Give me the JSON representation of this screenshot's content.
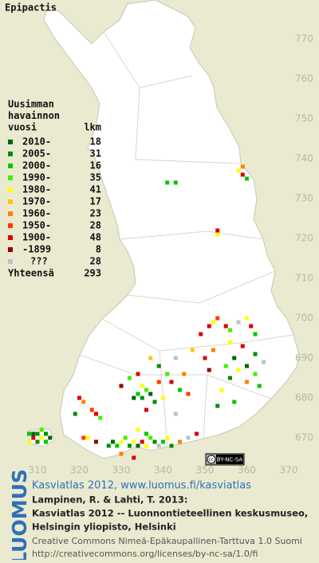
{
  "map": {
    "title": "Epipactis",
    "legend": {
      "heading": [
        "Uusimman",
        "havainnon",
        "vuosi"
      ],
      "count_header": "lkm",
      "rows": [
        {
          "label": "2010-",
          "count": 18,
          "color": "#006400"
        },
        {
          "label": "2005-",
          "count": 31,
          "color": "#008c00"
        },
        {
          "label": "2000-",
          "count": 16,
          "color": "#00c800"
        },
        {
          "label": "1990-",
          "count": 35,
          "color": "#44ee00"
        },
        {
          "label": "1980-",
          "count": 41,
          "color": "#ffff00"
        },
        {
          "label": "1970-",
          "count": 17,
          "color": "#ffc800"
        },
        {
          "label": "1960-",
          "count": 23,
          "color": "#ff8000"
        },
        {
          "label": "1950-",
          "count": 28,
          "color": "#ff3c00"
        },
        {
          "label": "1900-",
          "count": 48,
          "color": "#dc0000"
        },
        {
          "label": "-1899",
          "count": 8,
          "color": "#960000"
        },
        {
          "label": "???",
          "count": 28,
          "color": "#c0c0c0"
        }
      ],
      "total_label": "Yhteensä",
      "total": 293
    },
    "xticks": [
      310,
      320,
      330,
      340,
      350,
      360,
      370
    ],
    "yticks": [
      770,
      760,
      750,
      740,
      730,
      720,
      710,
      700,
      690,
      680,
      670
    ],
    "points": [
      [
        341,
        734,
        2
      ],
      [
        343,
        734,
        2
      ],
      [
        358,
        737,
        4
      ],
      [
        359,
        736,
        8
      ],
      [
        360,
        735,
        2
      ],
      [
        359,
        738,
        6
      ],
      [
        353,
        722,
        8
      ],
      [
        353,
        721,
        4
      ],
      [
        308,
        671,
        2
      ],
      [
        309,
        671,
        0
      ],
      [
        310,
        671,
        1
      ],
      [
        311,
        670,
        4
      ],
      [
        312,
        671,
        1
      ],
      [
        309,
        670,
        8
      ],
      [
        310,
        669,
        1
      ],
      [
        312,
        669,
        2
      ],
      [
        313,
        670,
        0
      ],
      [
        311,
        672,
        3
      ],
      [
        308,
        669,
        4
      ],
      [
        320,
        680,
        8
      ],
      [
        321,
        679,
        6
      ],
      [
        323,
        677,
        7
      ],
      [
        324,
        676,
        8
      ],
      [
        325,
        675,
        3
      ],
      [
        319,
        676,
        1
      ],
      [
        321,
        670,
        7
      ],
      [
        322,
        670,
        4
      ],
      [
        324,
        669,
        9
      ],
      [
        327,
        668,
        1
      ],
      [
        328,
        669,
        0
      ],
      [
        329,
        668,
        2
      ],
      [
        330,
        669,
        4
      ],
      [
        331,
        670,
        3
      ],
      [
        332,
        668,
        1
      ],
      [
        333,
        669,
        4
      ],
      [
        334,
        668,
        0
      ],
      [
        335,
        669,
        8
      ],
      [
        336,
        668,
        4
      ],
      [
        337,
        670,
        3
      ],
      [
        338,
        669,
        1
      ],
      [
        339,
        668,
        10
      ],
      [
        340,
        669,
        2
      ],
      [
        341,
        670,
        4
      ],
      [
        330,
        666,
        6
      ],
      [
        333,
        665,
        8
      ],
      [
        334,
        672,
        4
      ],
      [
        336,
        671,
        2
      ],
      [
        342,
        668,
        1
      ],
      [
        344,
        669,
        6
      ],
      [
        346,
        670,
        10
      ],
      [
        348,
        671,
        8
      ],
      [
        333,
        680,
        0
      ],
      [
        334,
        681,
        2
      ],
      [
        335,
        680,
        1
      ],
      [
        336,
        682,
        3
      ],
      [
        337,
        681,
        0
      ],
      [
        335,
        683,
        4
      ],
      [
        338,
        679,
        1
      ],
      [
        336,
        677,
        8
      ],
      [
        340,
        680,
        4
      ],
      [
        339,
        684,
        7
      ],
      [
        342,
        684,
        8
      ],
      [
        341,
        686,
        3
      ],
      [
        344,
        682,
        2
      ],
      [
        345,
        686,
        6
      ],
      [
        343,
        676,
        10
      ],
      [
        346,
        681,
        7
      ],
      [
        330,
        683,
        9
      ],
      [
        332,
        685,
        3
      ],
      [
        339,
        688,
        1
      ],
      [
        343,
        690,
        10
      ],
      [
        337,
        690,
        5
      ],
      [
        334,
        686,
        8
      ],
      [
        351,
        698,
        8
      ],
      [
        352,
        699,
        4
      ],
      [
        353,
        700,
        7
      ],
      [
        355,
        698,
        8
      ],
      [
        356,
        697,
        3
      ],
      [
        358,
        699,
        10
      ],
      [
        360,
        700,
        4
      ],
      [
        361,
        698,
        8
      ],
      [
        362,
        696,
        2
      ],
      [
        359,
        693,
        8
      ],
      [
        362,
        691,
        1
      ],
      [
        357,
        690,
        0
      ],
      [
        355,
        688,
        3
      ],
      [
        358,
        687,
        4
      ],
      [
        356,
        685,
        1
      ],
      [
        360,
        684,
        6
      ],
      [
        362,
        686,
        3
      ],
      [
        364,
        689,
        10
      ],
      [
        363,
        683,
        2
      ],
      [
        352,
        692,
        6
      ],
      [
        350,
        690,
        8
      ],
      [
        354,
        682,
        4
      ],
      [
        353,
        678,
        1
      ],
      [
        357,
        679,
        2
      ],
      [
        351,
        687,
        9
      ],
      [
        349,
        696,
        8
      ],
      [
        347,
        692,
        5
      ],
      [
        356,
        694,
        4
      ],
      [
        360,
        688,
        0
      ]
    ]
  },
  "credits": {
    "logo": "LUOMUS",
    "link": "Kasviatlas 2012, www.luomus.fi/kasviatlas",
    "citation": [
      "Lampinen, R. & Lahti, T. 2013:",
      "Kasviatlas 2012 -- Luonnontieteellinen keskusmuseo,",
      "Helsingin yliopisto, Helsinki"
    ],
    "license": [
      "Creative Commons Nimeä-Epäkaupallinen-Tarttuva 1.0 Suomi",
      "http://creativecommons.org/licenses/by-nc-sa/1.0/fi"
    ]
  }
}
